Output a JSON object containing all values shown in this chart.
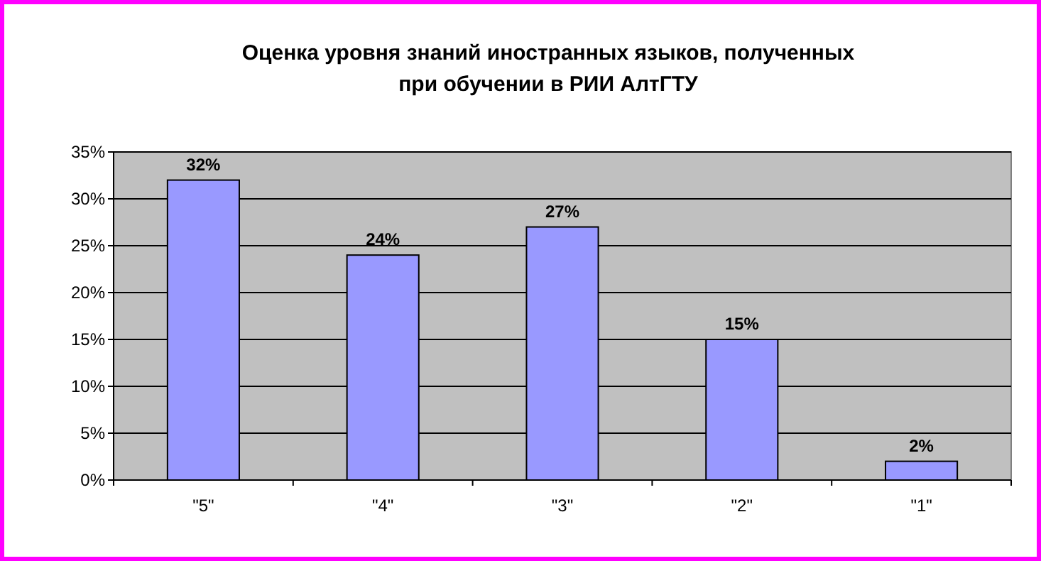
{
  "chart_data": {
    "type": "bar",
    "title": "Оценка уровня знаний иностранных языков, полученных\nпри обучении в РИИ АлтГТУ",
    "categories": [
      "\"5\"",
      "\"4\"",
      "\"3\"",
      "\"2\"",
      "\"1\""
    ],
    "values": [
      32,
      24,
      27,
      15,
      2
    ],
    "color": "#9999ff",
    "data_labels": true,
    "value_labels": [
      "32%",
      "24%",
      "27%",
      "15%",
      "2%"
    ],
    "ylim": [
      0,
      35
    ],
    "yticks": [
      {
        "value": 0,
        "label": "0%"
      },
      {
        "value": 5,
        "label": "5%"
      },
      {
        "value": 10,
        "label": "10%"
      },
      {
        "value": 15,
        "label": "15%"
      },
      {
        "value": 20,
        "label": "20%"
      },
      {
        "value": 25,
        "label": "25%"
      },
      {
        "value": 30,
        "label": "30%"
      },
      {
        "value": 35,
        "label": "35%"
      }
    ],
    "grid": "y"
  }
}
